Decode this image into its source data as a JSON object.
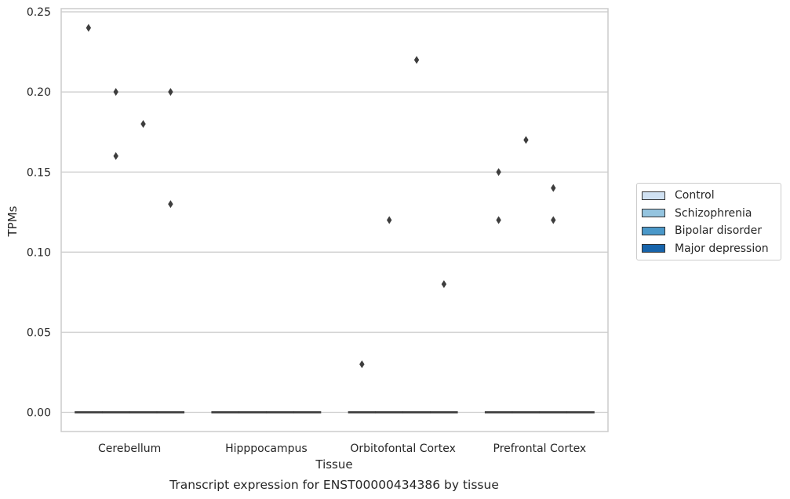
{
  "chart_data": {
    "type": "box",
    "title": "Transcript expression for ENST00000434386 by tissue",
    "xlabel": "Tissue",
    "ylabel": "TPMs",
    "ylim": [
      -0.012,
      0.252
    ],
    "yticks": [
      "0.00",
      "0.05",
      "0.10",
      "0.15",
      "0.20",
      "0.25"
    ],
    "ytick_values": [
      0,
      0.05,
      0.1,
      0.15,
      0.2,
      0.25
    ],
    "categories": [
      "Cerebellum",
      "Hipppocampus",
      "Orbitofontal Cortex",
      "Prefrontal Cortex"
    ],
    "grid": "horizontal",
    "legend_position": "right",
    "series": [
      {
        "name": "Control",
        "color": "#d0e1f2",
        "medians": [
          0,
          0,
          0,
          0
        ],
        "outliers": [
          [
            0.24
          ],
          [],
          [
            0.03
          ],
          [
            0.12,
            0.15
          ]
        ]
      },
      {
        "name": "Schizophrenia",
        "color": "#94c4df",
        "medians": [
          0,
          0,
          0,
          0
        ],
        "outliers": [
          [
            0.2,
            0.16
          ],
          [],
          [
            0.12
          ],
          [
            0.17
          ]
        ]
      },
      {
        "name": "Bipolar disorder",
        "color": "#4a98c9",
        "medians": [
          0,
          0,
          0,
          0
        ],
        "outliers": [
          [
            0.18
          ],
          [],
          [
            0.22
          ],
          [
            0.12,
            0.14
          ]
        ]
      },
      {
        "name": "Major depression",
        "color": "#1764ab",
        "medians": [
          0,
          0,
          0,
          0
        ],
        "outliers": [
          [
            0.2,
            0.13
          ],
          [],
          [
            0.08
          ],
          []
        ]
      }
    ]
  }
}
